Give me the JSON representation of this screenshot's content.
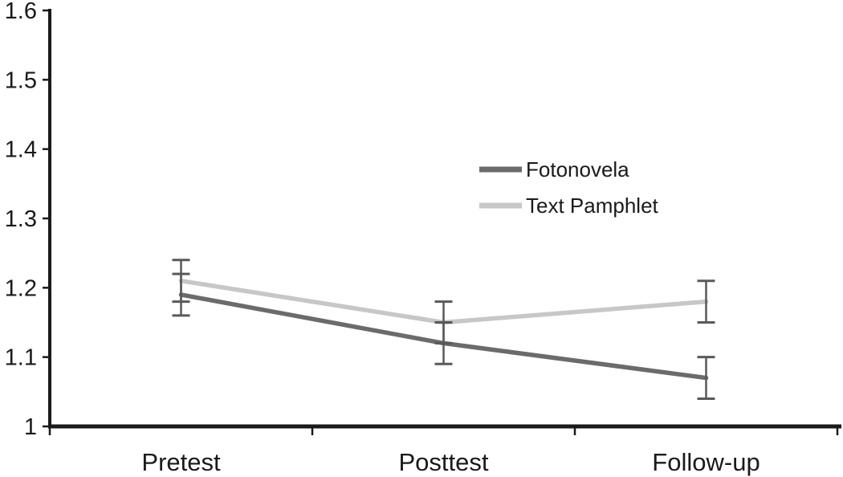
{
  "chart_data": {
    "type": "line",
    "title": "",
    "xlabel": "",
    "ylabel": "",
    "categories": [
      "Pretest",
      "Posttest",
      "Follow-up"
    ],
    "series": [
      {
        "name": "Fotonovela",
        "values": [
          1.19,
          1.12,
          1.07
        ],
        "error_plus": [
          0.03,
          0.03,
          0.03
        ],
        "error_minus": [
          0.03,
          0.03,
          0.03
        ],
        "color": "#6b6b6b"
      },
      {
        "name": "Text Pamphlet",
        "values": [
          1.21,
          1.15,
          1.18
        ],
        "error_plus": [
          0.03,
          0.03,
          0.03
        ],
        "error_minus": [
          0.03,
          0.03,
          0.03
        ],
        "color": "#c7c7c7"
      }
    ],
    "ylim": [
      1.0,
      1.6
    ],
    "ytick_step": 0.1,
    "ytick_labels": [
      "1",
      "1.1",
      "1.2",
      "1.3",
      "1.4",
      "1.5",
      "1.6"
    ],
    "grid": false,
    "legend_position": "center-right",
    "axis_color": "#1a1a1a",
    "error_bar_color": "#595959"
  },
  "layout_text": {
    "legend": {
      "items": [
        "Fotonovela",
        "Text Pamphlet"
      ]
    }
  }
}
